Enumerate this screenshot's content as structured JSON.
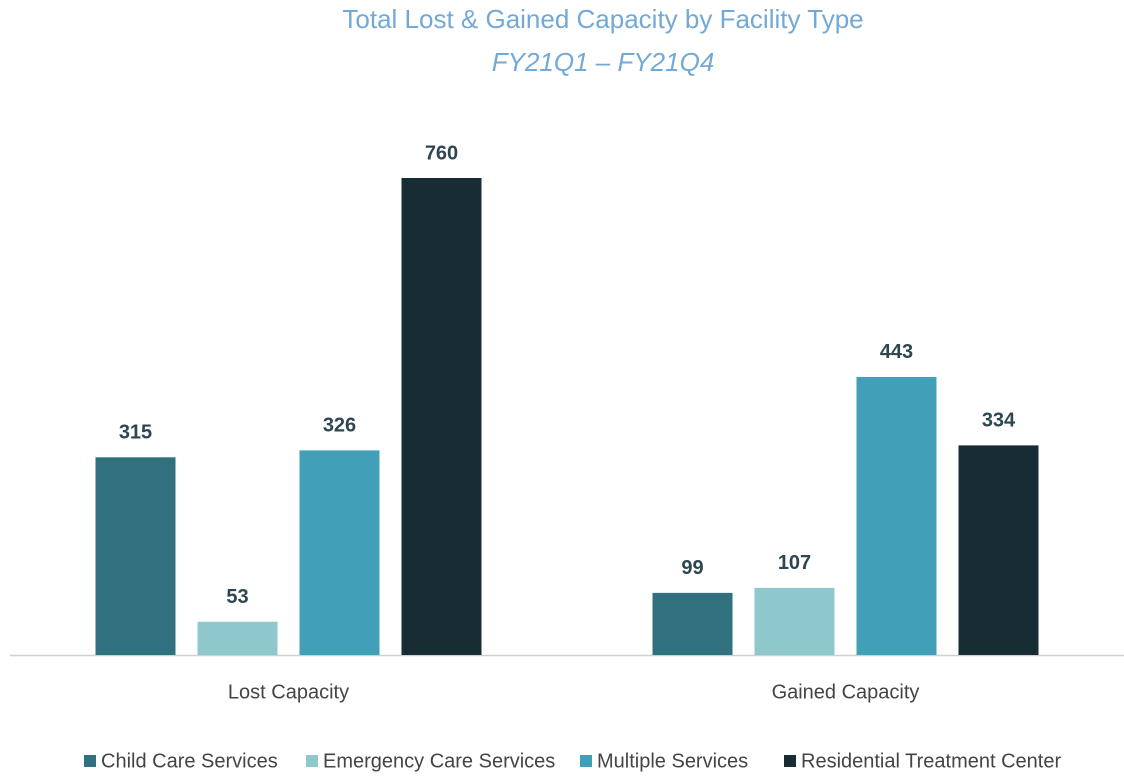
{
  "chart_data": {
    "type": "bar",
    "title": "Total Lost & Gained Capacity by Facility Type",
    "subtitle": "FY21Q1 – FY21Q4",
    "categories": [
      "Lost Capacity",
      "Gained Capacity"
    ],
    "series": [
      {
        "name": "Child Care Services",
        "color": "#31717f",
        "values": [
          315,
          99
        ]
      },
      {
        "name": "Emergency Care Services",
        "color": "#8ec8cc",
        "values": [
          53,
          107
        ]
      },
      {
        "name": "Multiple Services",
        "color": "#419fb8",
        "values": [
          326,
          443
        ]
      },
      {
        "name": "Residential Treatment Center",
        "color": "#182c33",
        "values": [
          760,
          334
        ]
      }
    ],
    "legend": "bottom"
  }
}
